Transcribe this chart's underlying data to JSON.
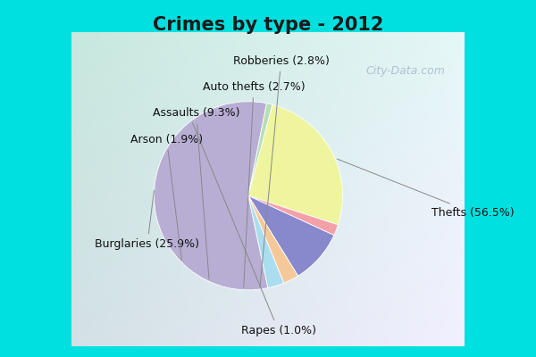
{
  "title": "Crimes by type - 2012",
  "slices": [
    {
      "label": "Thefts (56.5%)",
      "value": 56.5,
      "color": "#b8aed4"
    },
    {
      "label": "Burglaries (25.9%)",
      "value": 25.9,
      "color": "#eef59e"
    },
    {
      "label": "Assaults (9.3%)",
      "value": 9.3,
      "color": "#8888cc"
    },
    {
      "label": "Auto thefts (2.7%)",
      "value": 2.7,
      "color": "#f5c89a"
    },
    {
      "label": "Robberies (2.8%)",
      "value": 2.8,
      "color": "#aaddee"
    },
    {
      "label": "Arson (1.9%)",
      "value": 1.9,
      "color": "#f4a0a8"
    },
    {
      "label": "Rapes (1.0%)",
      "value": 1.0,
      "color": "#b8ddb8"
    }
  ],
  "title_fontsize": 15,
  "label_fontsize": 9,
  "bg_outer": "#00e0e0",
  "bg_inner_tl": "#c8eedd",
  "bg_inner_br": "#ddeeff",
  "watermark": "City-Data.com"
}
